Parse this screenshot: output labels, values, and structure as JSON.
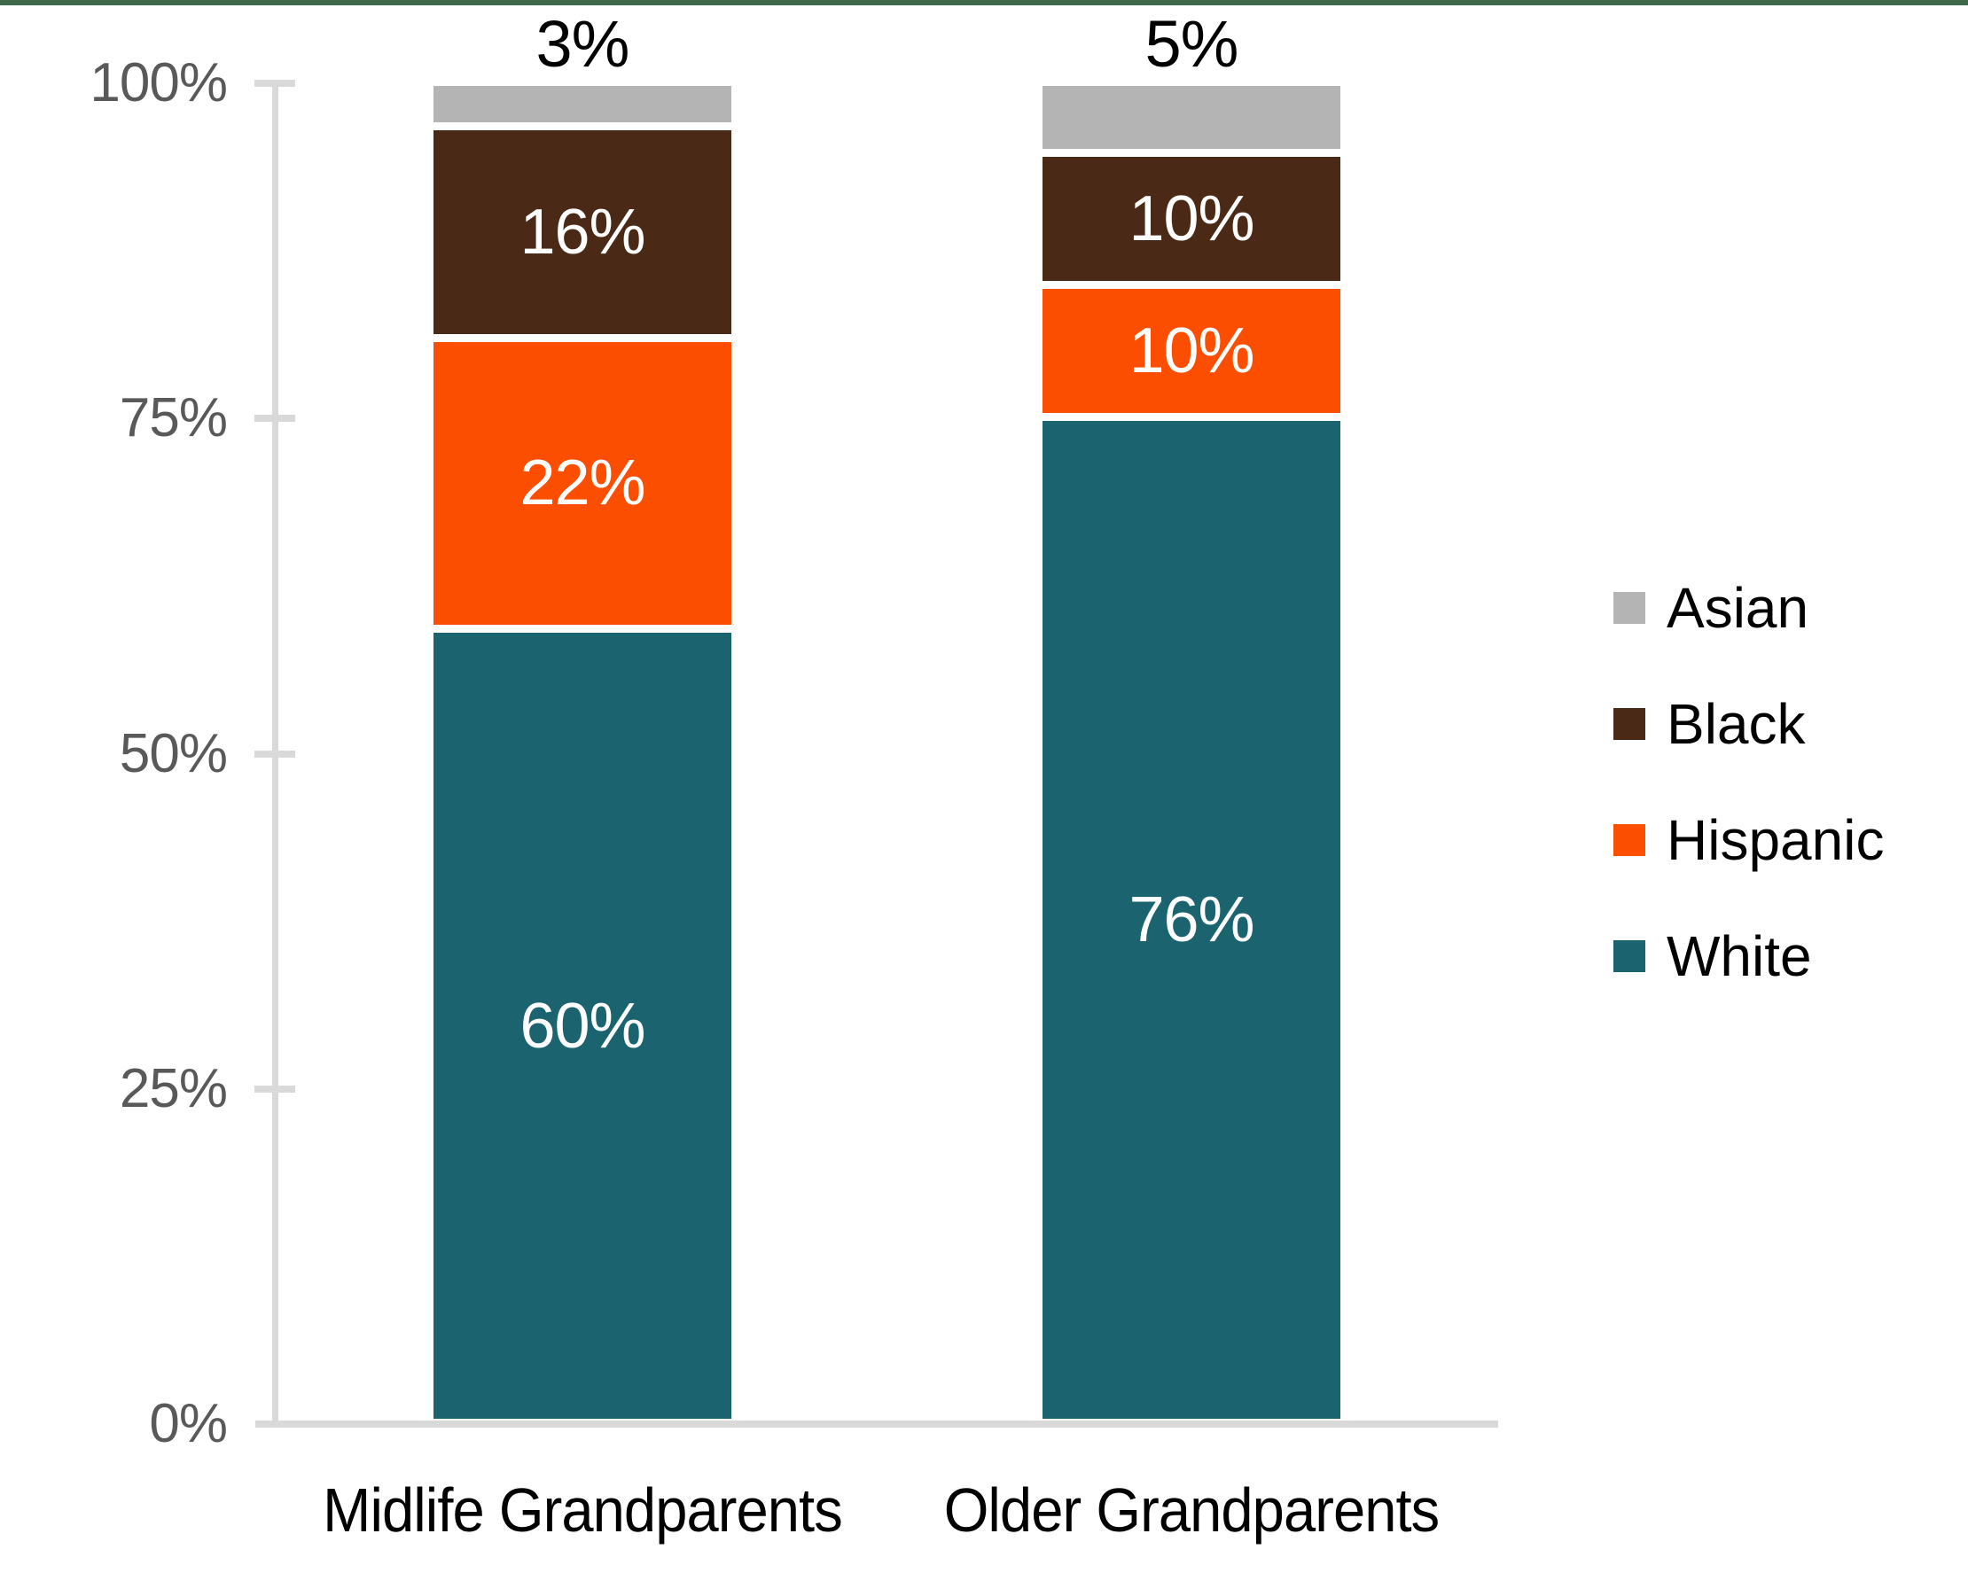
{
  "top_banner": {
    "color": "#3d6849"
  },
  "colors": {
    "axis_text": "#595959",
    "axis_line": "#d9d9d9",
    "data_label_inside": "#ffffff",
    "data_label_above": "#000000",
    "background": "#ffffff"
  },
  "chart_data": {
    "type": "bar",
    "variant": "stacked-column-percent",
    "title": "",
    "categories": [
      "Midlife Grandparents",
      "Older Grandparents"
    ],
    "stack_order_bottom_to_top": [
      "White",
      "Hispanic",
      "Black",
      "Asian"
    ],
    "series": [
      {
        "name": "White",
        "color": "#1a636f",
        "values": [
          60,
          76
        ],
        "data_labels": [
          "60%",
          "76%"
        ],
        "label_style": "inside-white"
      },
      {
        "name": "Hispanic",
        "color": "#fc4e00",
        "values": [
          22,
          10
        ],
        "data_labels": [
          "22%",
          "10%"
        ],
        "label_style": "inside-white"
      },
      {
        "name": "Black",
        "color": "#4a2a16",
        "values": [
          16,
          10
        ],
        "data_labels": [
          "16%",
          "10%"
        ],
        "label_style": "inside-white"
      },
      {
        "name": "Asian",
        "color": "#b4b4b4",
        "values": [
          3,
          5
        ],
        "data_labels": [
          "3%",
          "5%"
        ],
        "label_style": "above-black"
      }
    ],
    "y_axis": {
      "min": 0,
      "max": 100,
      "tick_labels": [
        "0%",
        "25%",
        "50%",
        "75%",
        "100%"
      ],
      "grid": false
    },
    "legend": {
      "position": "right",
      "items": [
        {
          "label": "Asian",
          "color": "#b4b4b4"
        },
        {
          "label": "Black",
          "color": "#4a2a16"
        },
        {
          "label": "Hispanic",
          "color": "#fc4e00"
        },
        {
          "label": "White",
          "color": "#1a636f"
        }
      ]
    }
  }
}
